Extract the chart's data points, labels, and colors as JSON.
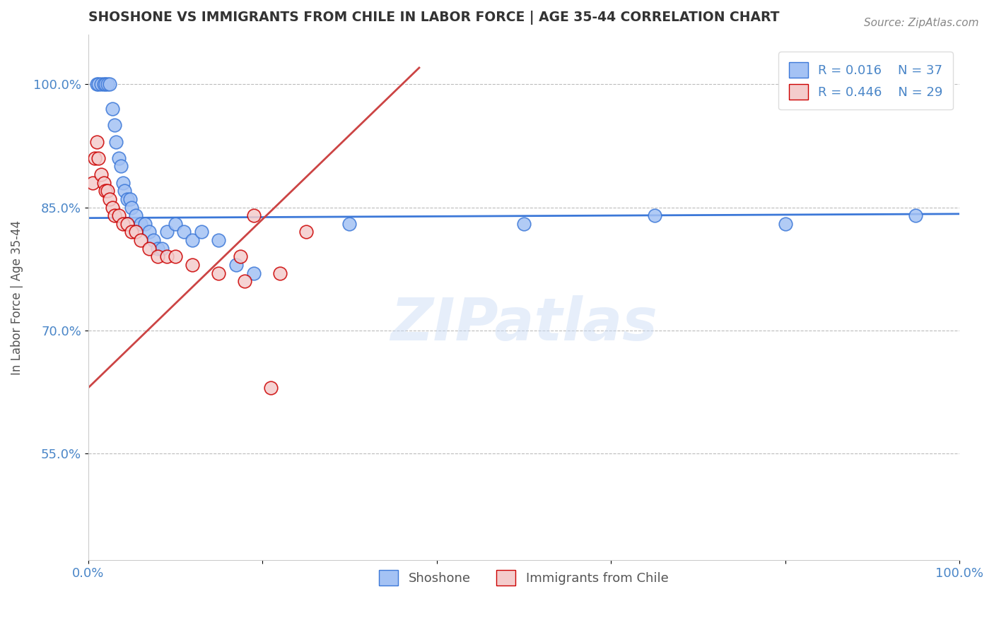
{
  "title": "SHOSHONE VS IMMIGRANTS FROM CHILE IN LABOR FORCE | AGE 35-44 CORRELATION CHART",
  "source": "Source: ZipAtlas.com",
  "ylabel": "In Labor Force | Age 35-44",
  "xlim": [
    0.0,
    1.0
  ],
  "ylim": [
    0.42,
    1.06
  ],
  "xticks": [
    0.0,
    0.2,
    0.4,
    0.6,
    0.8,
    1.0
  ],
  "yticks": [
    0.55,
    0.7,
    0.85,
    1.0
  ],
  "xticklabels": [
    "0.0%",
    "",
    "",
    "",
    "",
    "100.0%"
  ],
  "yticklabels": [
    "55.0%",
    "70.0%",
    "85.0%",
    "100.0%"
  ],
  "legend_labels": [
    "Shoshone",
    "Immigrants from Chile"
  ],
  "R_blue": "R = 0.016",
  "N_blue": "N = 37",
  "R_pink": "R = 0.446",
  "N_pink": "N = 29",
  "blue_color": "#a4c2f4",
  "pink_color": "#f4cccc",
  "blue_edge_color": "#3c78d8",
  "pink_edge_color": "#cc0000",
  "blue_line_color": "#3c78d8",
  "pink_line_color": "#cc4444",
  "grid_color": "#bbbbbb",
  "watermark": "ZIPatlas",
  "shoshone_x": [
    0.01,
    0.012,
    0.015,
    0.018,
    0.02,
    0.022,
    0.025,
    0.028,
    0.03,
    0.032,
    0.035,
    0.038,
    0.04,
    0.042,
    0.045,
    0.048,
    0.05,
    0.055,
    0.06,
    0.065,
    0.07,
    0.075,
    0.08,
    0.085,
    0.09,
    0.1,
    0.11,
    0.12,
    0.13,
    0.15,
    0.17,
    0.19,
    0.3,
    0.5,
    0.65,
    0.8,
    0.95
  ],
  "shoshone_y": [
    1.0,
    1.0,
    1.0,
    1.0,
    1.0,
    1.0,
    1.0,
    0.97,
    0.95,
    0.93,
    0.91,
    0.9,
    0.88,
    0.87,
    0.86,
    0.86,
    0.85,
    0.84,
    0.83,
    0.83,
    0.82,
    0.81,
    0.8,
    0.8,
    0.82,
    0.83,
    0.82,
    0.81,
    0.82,
    0.81,
    0.78,
    0.77,
    0.83,
    0.83,
    0.84,
    0.83,
    0.84
  ],
  "chile_x": [
    0.005,
    0.008,
    0.01,
    0.012,
    0.015,
    0.018,
    0.02,
    0.022,
    0.025,
    0.028,
    0.03,
    0.035,
    0.04,
    0.045,
    0.05,
    0.055,
    0.06,
    0.07,
    0.08,
    0.09,
    0.1,
    0.12,
    0.15,
    0.18,
    0.22,
    0.25,
    0.19,
    0.175,
    0.21
  ],
  "chile_y": [
    0.88,
    0.91,
    0.93,
    0.91,
    0.89,
    0.88,
    0.87,
    0.87,
    0.86,
    0.85,
    0.84,
    0.84,
    0.83,
    0.83,
    0.82,
    0.82,
    0.81,
    0.8,
    0.79,
    0.79,
    0.79,
    0.78,
    0.77,
    0.76,
    0.77,
    0.82,
    0.84,
    0.79,
    0.63
  ]
}
